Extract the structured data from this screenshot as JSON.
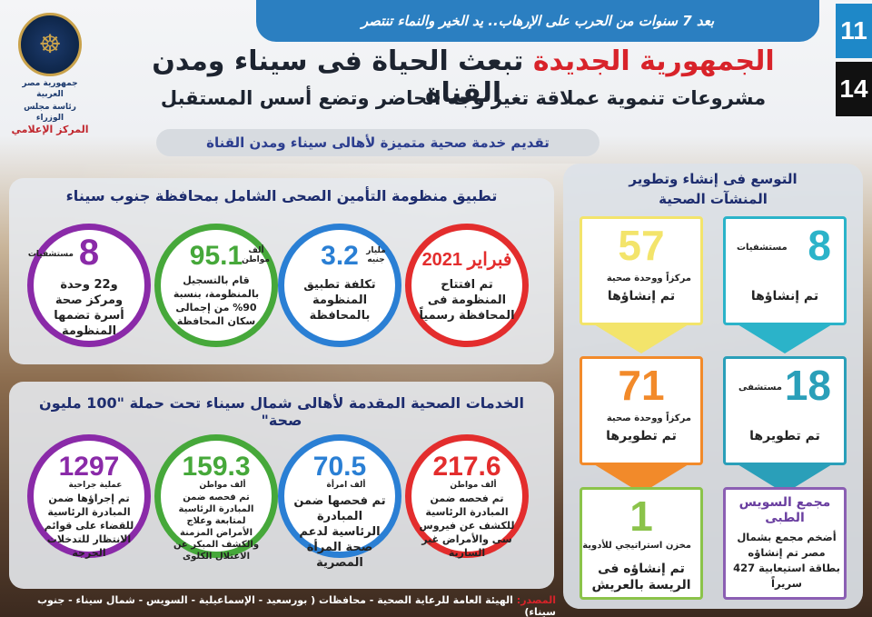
{
  "ribbon": "بعد 7 سنوات من الحرب على الإرهاب.. يد الخير والنماء تنتصر",
  "page_numbers": {
    "current": "11",
    "total": "14"
  },
  "logo": {
    "line1": "جمهورية مصر العربية",
    "line2": "رئاسة مجلس الوزراء",
    "line3": "المركز الإعلامي"
  },
  "title": {
    "red": "الجمهورية الجديدة",
    "dark": "تبعث الحياة فى سيناء ومدن القناة"
  },
  "subtitle": "مشروعات تنموية عملاقة تغير وجه الحاضر وتضع أسس المستقبل",
  "service_bar": "تقديم خدمة صحية متميزة لأهالى سيناء ومدن القناة",
  "right_panel": {
    "title_line1": "التوسع فى إنشاء وتطوير",
    "title_line2": "المنشآت الصحية",
    "cards": [
      {
        "num": "8",
        "unit": "مستشفيات",
        "main": "تم إنشاؤها",
        "color": "#2bb3c9"
      },
      {
        "num": "57",
        "unit": "مركزاً ووحدة صحية",
        "main": "تم إنشاؤها",
        "color": "#f3e46b"
      },
      {
        "num": "18",
        "unit": "مستشفى",
        "main": "تم تطويرها",
        "color": "#2a9fb9"
      },
      {
        "num": "71",
        "unit": "مركزاً ووحدة صحية",
        "main": "تم تطويرها",
        "color": "#f28a2a"
      },
      {
        "num": "مجمع السويس",
        "unit": "الطبى",
        "main": "أضخم مجمع بشمال مصر تم إنشاؤه بطاقة استيعابية 427 سريراً",
        "color": "#8b5fb3"
      },
      {
        "num": "1",
        "unit": "مخزن استراتيجي للأدوية",
        "main": "تم إنشاؤه فى الريسة بالعريش",
        "color": "#8bc34a"
      }
    ]
  },
  "section1": {
    "title": "تطبيق منظومة التأمين الصحى الشامل بمحافظة جنوب سيناء",
    "circles": [
      {
        "num": "فبراير 2021",
        "unit": "",
        "text": "تم افتتاح المنظومة فى المحافظة رسمياً",
        "color": "#e32d2d"
      },
      {
        "num": "3.2",
        "unit": "مليار جنيه",
        "text": "تكلفة تطبيق المنظومة بالمحافظة",
        "color": "#2a7fd4"
      },
      {
        "num": "95.1",
        "unit": "ألف مواطن",
        "text": "قام بالتسجيل بالمنظومة، بنسبة 90% من إجمالى سكان المحافظة",
        "color": "#46a83a"
      },
      {
        "num": "8",
        "unit": "مستشفيات",
        "text": "و22 وحدة ومركز صحة أسرة تضمها المنظومة",
        "color": "#8a2aa8"
      }
    ]
  },
  "section2": {
    "title": "الخدمات الصحية المقدمة لأهالى شمال سيناء تحت حملة \"100 مليون صحة\"",
    "circles": [
      {
        "num": "217.6",
        "unit": "ألف مواطن",
        "text": "تم فحصه ضمن المبادرة الرئاسية للكشف عن فيروس سى والأمراض غير السارية",
        "color": "#e32d2d"
      },
      {
        "num": "70.5",
        "unit": "ألف امرأة",
        "text": "تم فحصها ضمن المبادرة الرئاسية لدعم صحة المرأة المصرية",
        "color": "#2a7fd4"
      },
      {
        "num": "159.3",
        "unit": "ألف مواطن",
        "text": "تم فحصه ضمن المبادرة الرئاسية لمتابعة وعلاج الأمراض المزمنة والكشف المبكر عن الاعتلال الكلوى",
        "color": "#46a83a"
      },
      {
        "num": "1297",
        "unit": "عملية جراحية",
        "text": "تم إجراؤها ضمن المبادرة الرئاسية للقضاء على قوائم الانتظار للتدخلات الحرجة",
        "color": "#8a2aa8"
      }
    ]
  },
  "source": {
    "label": "المصدر:",
    "text": "الهيئة العامة للرعاية الصحية - محافظات ( بورسعيد - الإسماعيلية - السويس - شمال سيناء - جنوب سيناء)"
  }
}
